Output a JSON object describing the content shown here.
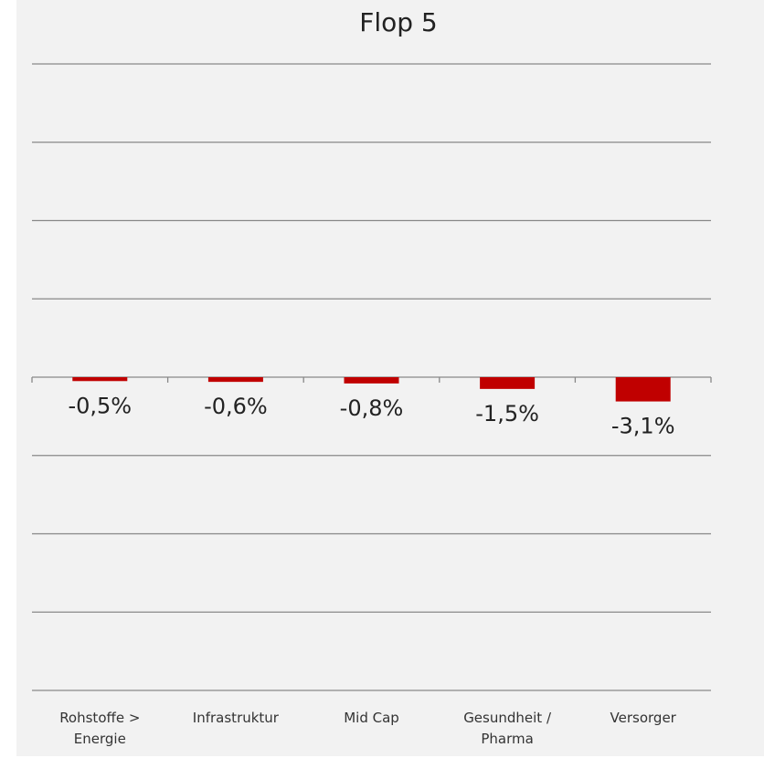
{
  "chart_data": {
    "type": "bar",
    "title": "Flop 5",
    "categories": [
      "Rohstoffe > Energie",
      "Infrastruktur",
      "Mid Cap",
      "Gesundheit / Pharma",
      "Versorger"
    ],
    "values": [
      -0.5,
      -0.6,
      -0.8,
      -1.5,
      -3.1
    ],
    "value_labels": [
      "-0,5%",
      "-0,6%",
      "-0,8%",
      "-1,5%",
      "-3,1%"
    ],
    "color": "#c00000",
    "ylim": [
      -40,
      40
    ],
    "yticks": [
      -40,
      -30,
      -20,
      -10,
      0,
      10,
      20,
      30,
      40
    ],
    "grid": true
  }
}
